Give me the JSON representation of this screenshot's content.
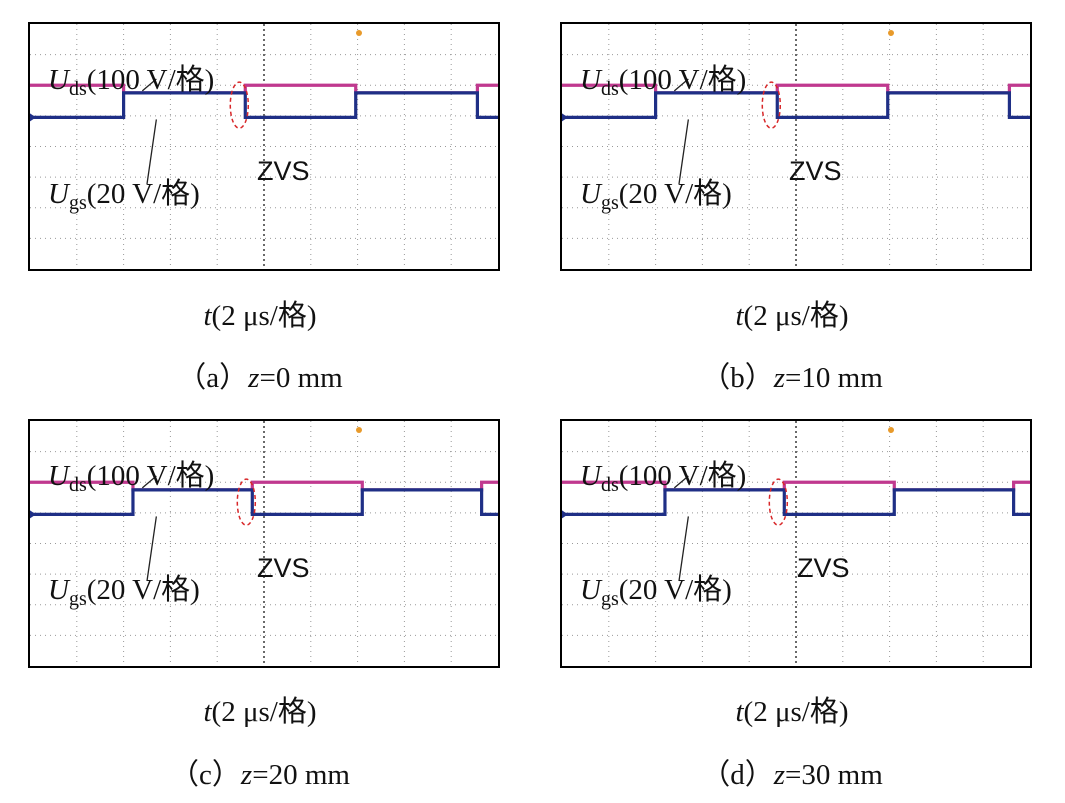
{
  "chart_data": [
    {
      "type": "line",
      "caption_prefix": "（a）",
      "caption_var": "z",
      "caption_value": "=0 mm",
      "xlabel_var": "t",
      "xlabel_rest": "(2 μs/格)",
      "ds_label_main": "U",
      "ds_label_sub": "ds",
      "ds_label_rest": "(100 V/格)",
      "gs_label_main": "U",
      "gs_label_sub": "gs",
      "gs_label_rest": "(20 V/格)",
      "annotation": "ZVS",
      "grid": "on",
      "x_divisions": 10,
      "y_divisions": 8,
      "period_div": 4.96,
      "duty_high_div": 2.03,
      "series": [
        {
          "key": "Uds",
          "color": "#c0398f",
          "high_div": 6.0,
          "low_div": 5.75
        },
        {
          "key": "Ugs",
          "color": "#1f2f86",
          "high_div": 5.75,
          "low_div": 4.95
        }
      ]
    },
    {
      "type": "line",
      "caption_prefix": "（b）",
      "caption_var": "z",
      "caption_value": "=10 mm",
      "xlabel_var": "t",
      "xlabel_rest": "(2 μs/格)",
      "ds_label_main": "U",
      "ds_label_sub": "ds",
      "ds_label_rest": "(100 V/格)",
      "gs_label_main": "U",
      "gs_label_sub": "gs",
      "gs_label_rest": "(20 V/格)",
      "annotation": "ZVS",
      "grid": "on",
      "x_divisions": 10,
      "y_divisions": 8,
      "period_div": 4.96,
      "duty_high_div": 2.03,
      "series": [
        {
          "key": "Uds",
          "color": "#c0398f",
          "high_div": 6.0,
          "low_div": 5.75
        },
        {
          "key": "Ugs",
          "color": "#1f2f86",
          "high_div": 5.75,
          "low_div": 4.95
        }
      ]
    },
    {
      "type": "line",
      "caption_prefix": "（c）",
      "caption_var": "z",
      "caption_value": "=20 mm",
      "xlabel_var": "t",
      "xlabel_rest": "(2 μs/格)",
      "ds_label_main": "U",
      "ds_label_sub": "ds",
      "ds_label_rest": "(100 V/格)",
      "gs_label_main": "U",
      "gs_label_sub": "gs",
      "gs_label_rest": "(20 V/格)",
      "annotation": "ZVS",
      "grid": "on",
      "x_divisions": 10,
      "y_divisions": 8,
      "period_div": 4.9,
      "duty_high_div": 2.2,
      "series": [
        {
          "key": "Uds",
          "color": "#c0398f",
          "high_div": 6.0,
          "low_div": 5.75
        },
        {
          "key": "Ugs",
          "color": "#1f2f86",
          "high_div": 5.75,
          "low_div": 4.95
        }
      ]
    },
    {
      "type": "line",
      "caption_prefix": "（d）",
      "caption_var": "z",
      "caption_value": "=30 mm",
      "xlabel_var": "t",
      "xlabel_rest": "(2 μs/格)",
      "ds_label_main": "U",
      "ds_label_sub": "ds",
      "ds_label_rest": "(100 V/格)",
      "gs_label_main": "U",
      "gs_label_sub": "gs",
      "gs_label_rest": "(20 V/格)",
      "annotation": "ZVS",
      "grid": "on",
      "x_divisions": 10,
      "y_divisions": 8,
      "period_div": 4.9,
      "duty_high_div": 2.2,
      "series": [
        {
          "key": "Uds",
          "color": "#c0398f",
          "high_div": 6.0,
          "low_div": 5.75
        },
        {
          "key": "Ugs",
          "color": "#1f2f86",
          "high_div": 5.75,
          "low_div": 4.95
        }
      ]
    }
  ]
}
